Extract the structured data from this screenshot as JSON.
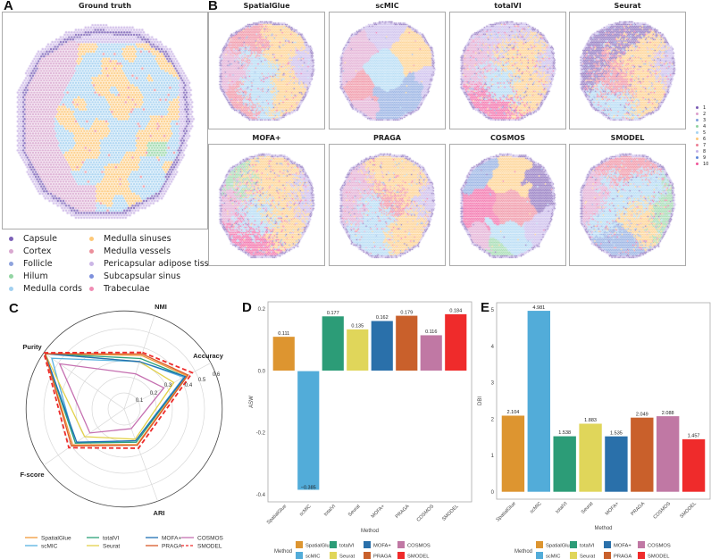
{
  "panel_labels": {
    "a": "A",
    "b": "B",
    "c": "C",
    "d": "D",
    "e": "E"
  },
  "panel_a": {
    "title": "Ground truth",
    "legend": [
      {
        "label": "Capsule",
        "color": "#7d62b8"
      },
      {
        "label": "Cortex",
        "color": "#d9a8d0"
      },
      {
        "label": "Follicle",
        "color": "#8ea3dd"
      },
      {
        "label": "Hilum",
        "color": "#93d5a3"
      },
      {
        "label": "Medulla cords",
        "color": "#a2d0f0"
      },
      {
        "label": "Medulla sinuses",
        "color": "#fdc878"
      },
      {
        "label": "Medulla vessels",
        "color": "#eb8f9b"
      },
      {
        "label": "Pericapsular adipose tissue",
        "color": "#cbb6e6"
      },
      {
        "label": "Subcapsular sinus",
        "color": "#7d8fdc"
      },
      {
        "label": "Trabeculae",
        "color": "#f08cb4"
      }
    ]
  },
  "panel_b": {
    "methods": [
      "SpatialGlue",
      "scMIC",
      "totalVI",
      "Seurat",
      "MOFA+",
      "PRAGA",
      "COSMOS",
      "SMODEL"
    ],
    "legend": [
      {
        "label": "1",
        "color": "#7b5cb3"
      },
      {
        "label": "2",
        "color": "#dd9fcc"
      },
      {
        "label": "3",
        "color": "#7f9fdc"
      },
      {
        "label": "4",
        "color": "#8fd3a0"
      },
      {
        "label": "5",
        "color": "#a6d4f2"
      },
      {
        "label": "6",
        "color": "#fdc97a"
      },
      {
        "label": "7",
        "color": "#ec7f93"
      },
      {
        "label": "8",
        "color": "#c3b2e8"
      },
      {
        "label": "9",
        "color": "#5f86d8"
      },
      {
        "label": "10",
        "color": "#f05499"
      }
    ]
  },
  "chart_data": [
    {
      "type": "radar",
      "axes": [
        "NMI",
        "Accuracy",
        "ARI",
        "F-score",
        "Purity"
      ],
      "radial_ticks": [
        "0.1",
        "0.2",
        "0.3",
        "0.4",
        "0.5",
        "0.6"
      ],
      "rlim": [
        0,
        0.6
      ],
      "legend_position": "bottom",
      "series": [
        {
          "name": "SpatialGlue",
          "color": "#f0993a",
          "dashed": false,
          "values": [
            0.35,
            0.44,
            0.235,
            0.39,
            0.6
          ]
        },
        {
          "name": "scMIC",
          "color": "#58b2e0",
          "dashed": false,
          "values": [
            0.31,
            0.42,
            0.21,
            0.37,
            0.55
          ]
        },
        {
          "name": "totalVI",
          "color": "#2ca07a",
          "dashed": false,
          "values": [
            0.33,
            0.43,
            0.22,
            0.37,
            0.6
          ]
        },
        {
          "name": "Seurat",
          "color": "#e3d14a",
          "dashed": false,
          "values": [
            0.31,
            0.35,
            0.2,
            0.3,
            0.6
          ]
        },
        {
          "name": "MOFA+",
          "color": "#1f6fb4",
          "dashed": false,
          "values": [
            0.31,
            0.43,
            0.21,
            0.36,
            0.6
          ]
        },
        {
          "name": "PRAGA",
          "color": "#d95a28",
          "dashed": false,
          "values": [
            0.36,
            0.45,
            0.24,
            0.4,
            0.6
          ]
        },
        {
          "name": "COSMOS",
          "color": "#c56fb0",
          "dashed": false,
          "values": [
            0.23,
            0.28,
            0.13,
            0.26,
            0.49
          ]
        },
        {
          "name": "SMODEL",
          "color": "#ee2b2b",
          "dashed": true,
          "values": [
            0.37,
            0.48,
            0.26,
            0.42,
            0.61
          ]
        }
      ]
    },
    {
      "type": "bar",
      "xlabel": "Method",
      "ylabel": "ASW",
      "ylim": [
        -0.4,
        0.2
      ],
      "yticks": [
        "-0.4",
        "-0.2",
        "0.0",
        "0.2"
      ],
      "ytick_values": [
        -0.4,
        -0.2,
        0,
        0.2
      ],
      "categories": [
        "SpatialGlue",
        "scMIC",
        "totalVI",
        "Seurat",
        "MOFA+",
        "PRAGA",
        "COSMOS",
        "SMODEL"
      ],
      "values": [
        0.111,
        -0.385,
        0.177,
        0.135,
        0.162,
        0.179,
        0.116,
        0.184
      ],
      "value_labels": [
        "0.111",
        "−0.385",
        "0.177",
        "0.135",
        "0.162",
        "0.179",
        "0.116",
        "0.184"
      ],
      "colors": [
        "#dd9530",
        "#52acd9",
        "#2c9c77",
        "#e0d65a",
        "#2a70aa",
        "#c9602b",
        "#c078a4",
        "#ef2b2b"
      ],
      "legend_title": "Method",
      "legend_position": "bottom"
    },
    {
      "type": "bar",
      "xlabel": "Method",
      "ylabel": "DBI",
      "ylim": [
        0,
        5
      ],
      "yticks": [
        "0",
        "1",
        "2",
        "3",
        "4",
        "5"
      ],
      "ytick_values": [
        0,
        1,
        2,
        3,
        4,
        5
      ],
      "categories": [
        "SpatialGlue",
        "scMIC",
        "totalVI",
        "Seurat",
        "MOFA+",
        "PRAGA",
        "COSMOS",
        "SMODEL"
      ],
      "values": [
        2.104,
        4.981,
        1.538,
        1.883,
        1.535,
        2.049,
        2.088,
        1.457
      ],
      "value_labels": [
        "2.104",
        "4.981",
        "1.538",
        "1.883",
        "1.535",
        "2.049",
        "2.088",
        "1.457"
      ],
      "colors": [
        "#dd9530",
        "#52acd9",
        "#2c9c77",
        "#e0d65a",
        "#2a70aa",
        "#c9602b",
        "#c078a4",
        "#ef2b2b"
      ],
      "legend_title": "Method",
      "legend_position": "bottom"
    }
  ]
}
